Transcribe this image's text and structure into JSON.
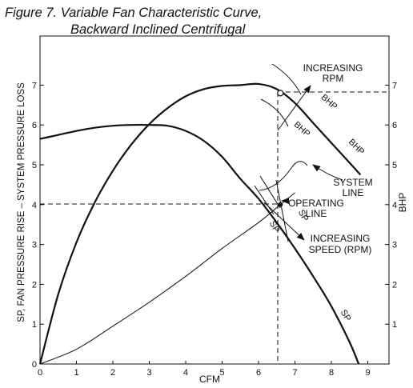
{
  "title_line1": "Figure 7. Variable Fan Characteristic Curve,",
  "title_line2": "Backward Inclined Centrifugal",
  "chart_data": {
    "type": "line",
    "xlabel": "CFM",
    "ylabel": "SP, FAN PRESSURE RISE – SYSTEM PRESSURE LOSS",
    "y2label": "BHP",
    "xlim": [
      0,
      9.5
    ],
    "ylim": [
      0,
      8.2
    ],
    "xticks": [
      "0",
      "1",
      "2",
      "3",
      "4",
      "5",
      "6",
      "7",
      "8",
      "9"
    ],
    "yticks": [
      "0",
      "1",
      "2",
      "3",
      "4",
      "5",
      "6",
      "7"
    ],
    "y2ticks": [
      "1",
      "2",
      "3",
      "4",
      "5",
      "6",
      "7"
    ],
    "grid": false,
    "series": [
      {
        "name": "SP",
        "style": "bold",
        "x": [
          0,
          0.5,
          1,
          1.5,
          2,
          2.5,
          3,
          3.5,
          4,
          4.5,
          5,
          5.5,
          6,
          6.5,
          7,
          7.5,
          8,
          8.5,
          8.8
        ],
        "y": [
          0,
          1.75,
          3.05,
          4.05,
          4.85,
          5.5,
          6.02,
          6.42,
          6.72,
          6.9,
          6.98,
          7.0,
          7.03,
          6.9,
          6.55,
          6.05,
          5.55,
          5.05,
          4.75
        ]
      },
      {
        "name": "SP",
        "style": "bold",
        "x": [
          0,
          0.5,
          1,
          1.5,
          2,
          2.5,
          3,
          3.5,
          4,
          4.5,
          5,
          5.5,
          6,
          6.5,
          7,
          7.5,
          8,
          8.5,
          8.75
        ],
        "y": [
          5.65,
          5.75,
          5.85,
          5.93,
          5.98,
          6.0,
          6.0,
          5.98,
          5.85,
          5.6,
          5.2,
          4.65,
          4.15,
          3.55,
          2.9,
          2.2,
          1.45,
          0.55,
          0
        ]
      },
      {
        "name": "SYSTEM LINE",
        "style": "thin",
        "x": [
          0,
          1,
          2,
          3,
          4,
          5,
          6,
          6.6,
          7
        ],
        "y": [
          0,
          0.37,
          0.95,
          1.55,
          2.2,
          2.9,
          3.55,
          4.0,
          4.3
        ]
      }
    ],
    "operating_point": {
      "x": 6.6,
      "y": 4.0
    },
    "marked_point": {
      "x": 6.6,
      "y": 6.8
    },
    "annotations": [
      {
        "text": "INCREASING",
        "text2": "RPM"
      },
      {
        "text": "BHP"
      },
      {
        "text": "BHP"
      },
      {
        "text": "BHP"
      },
      {
        "text": "SYSTEM",
        "text2": "LINE"
      },
      {
        "text": "OPERATING",
        "text2": "LINE"
      },
      {
        "text": "SP"
      },
      {
        "text": "SP"
      },
      {
        "text": "INCREASING",
        "text2": "SPEED (RPM)"
      },
      {
        "text": "SP"
      }
    ]
  }
}
